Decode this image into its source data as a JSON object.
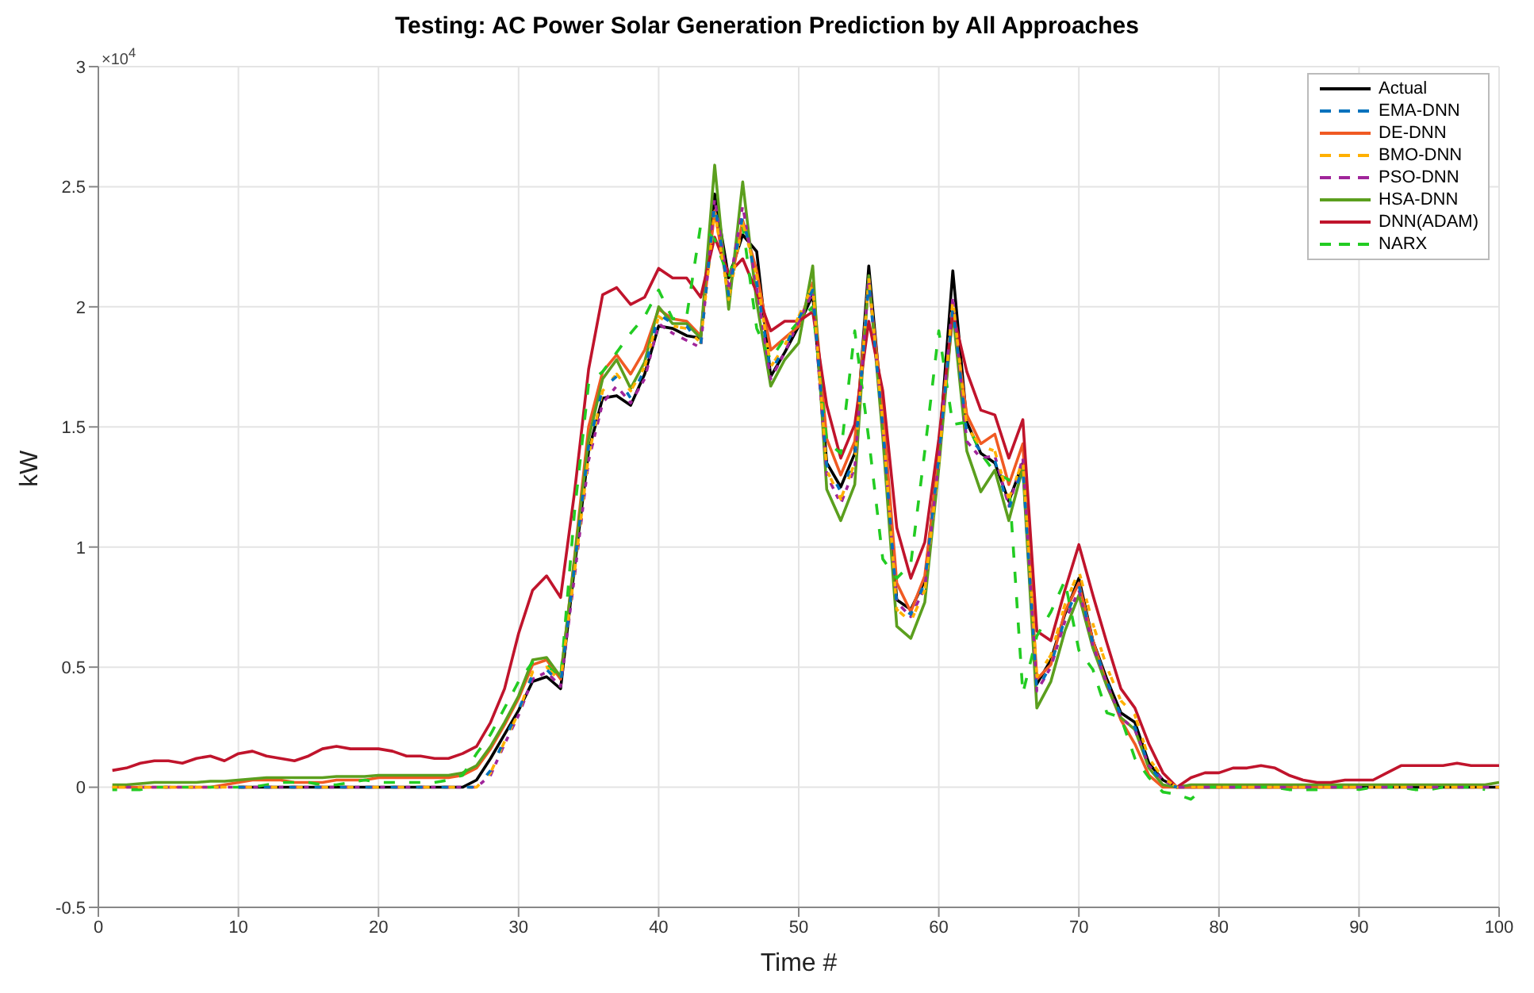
{
  "chart_data": {
    "type": "line",
    "title": "Testing: AC Power Solar Generation Prediction by All Approaches",
    "xlabel": "Time #",
    "ylabel": "kW",
    "annotations": [
      "×10$^{4}$"
    ],
    "x": [
      1,
      2,
      3,
      4,
      5,
      6,
      7,
      8,
      9,
      10,
      11,
      12,
      13,
      14,
      15,
      16,
      17,
      18,
      19,
      20,
      21,
      22,
      23,
      24,
      25,
      26,
      27,
      28,
      29,
      30,
      31,
      32,
      33,
      34,
      35,
      36,
      37,
      38,
      39,
      40,
      41,
      42,
      43,
      44,
      45,
      46,
      47,
      48,
      49,
      50,
      51,
      52,
      53,
      54,
      55,
      56,
      57,
      58,
      59,
      60,
      61,
      62,
      63,
      64,
      65,
      66,
      67,
      68,
      69,
      70,
      71,
      72,
      73,
      74,
      75,
      76,
      77,
      78,
      79,
      80,
      81,
      82,
      83,
      84,
      85,
      86,
      87,
      88,
      89,
      90,
      91,
      92,
      93,
      94,
      95,
      96,
      97,
      98,
      99,
      100
    ],
    "xlim": [
      0,
      100
    ],
    "xticks": [
      0,
      10,
      20,
      30,
      40,
      50,
      60,
      70,
      80,
      90,
      100
    ],
    "ylim": [
      -0.5,
      3
    ],
    "yticks": [
      -0.5,
      0,
      0.5,
      1,
      1.5,
      2,
      2.5,
      3
    ],
    "grid": true,
    "legend": "top right",
    "marker": "none",
    "series": [
      {
        "name": "Actual",
        "color": "#000000",
        "line_style": "solid",
        "values": [
          null,
          null,
          null,
          null,
          null,
          null,
          null,
          null,
          null,
          0,
          0,
          0,
          0,
          0,
          0,
          0,
          0,
          0,
          0,
          0,
          0,
          0,
          0,
          0,
          0,
          0,
          0.03,
          0.12,
          0.22,
          0.32,
          0.44,
          0.46,
          0.41,
          0.92,
          1.4,
          1.62,
          1.63,
          1.59,
          1.72,
          1.92,
          1.91,
          1.88,
          1.87,
          2.47,
          2.12,
          2.3,
          2.23,
          1.71,
          1.81,
          1.92,
          2.05,
          1.35,
          1.25,
          1.39,
          2.17,
          1.54,
          0.78,
          0.74,
          0.86,
          1.39,
          2.15,
          1.52,
          1.39,
          1.35,
          1.19,
          1.35,
          0.43,
          0.53,
          0.72,
          0.87,
          0.61,
          0.45,
          0.31,
          0.27,
          0.1,
          0.03,
          0,
          0,
          0,
          0,
          0,
          0,
          0,
          0,
          0,
          0,
          0,
          0,
          0,
          0,
          0,
          0,
          0,
          0,
          0,
          0,
          0,
          0,
          0,
          0
        ]
      },
      {
        "name": "EMA-DNN",
        "color": "#0072bd",
        "line_style": "dashed",
        "values": [
          null,
          null,
          null,
          null,
          null,
          null,
          null,
          null,
          null,
          0,
          0,
          0,
          0,
          0,
          0,
          0,
          0,
          0,
          0,
          0,
          0,
          0,
          0,
          0,
          0,
          0,
          0,
          0.07,
          0.2,
          0.32,
          0.47,
          0.49,
          0.43,
          0.92,
          1.42,
          1.66,
          1.71,
          1.62,
          1.74,
          1.97,
          1.93,
          1.92,
          1.84,
          2.43,
          2.05,
          2.38,
          2.1,
          1.73,
          1.83,
          1.95,
          2.07,
          1.34,
          1.23,
          1.37,
          2.1,
          1.5,
          0.76,
          0.72,
          0.85,
          1.37,
          2,
          1.47,
          1.4,
          1.36,
          1.16,
          1.33,
          0.4,
          0.51,
          0.7,
          0.84,
          0.6,
          0.44,
          0.3,
          0.25,
          0.09,
          0.02,
          0,
          null,
          null,
          null,
          null,
          null,
          null,
          null,
          null,
          null,
          null,
          null,
          null,
          null,
          null,
          null,
          null,
          null,
          null,
          null,
          null,
          null,
          null,
          null
        ]
      },
      {
        "name": "DE-DNN",
        "color": "#f05a23",
        "line_style": "solid",
        "values": [
          0,
          0,
          0,
          0,
          0,
          0,
          0,
          0,
          0.01,
          0.02,
          0.03,
          0.03,
          0.03,
          0.02,
          0.02,
          0.02,
          0.03,
          0.03,
          0.03,
          0.04,
          0.04,
          0.04,
          0.04,
          0.04,
          0.04,
          0.05,
          0.08,
          0.16,
          0.26,
          0.37,
          0.51,
          0.53,
          0.45,
          0.96,
          1.5,
          1.73,
          1.8,
          1.72,
          1.82,
          1.99,
          1.95,
          1.94,
          1.88,
          2.4,
          2.05,
          2.36,
          2.15,
          1.82,
          1.87,
          1.92,
          2.1,
          1.45,
          1.3,
          1.44,
          2.1,
          1.58,
          0.85,
          0.73,
          0.88,
          1.38,
          1.97,
          1.55,
          1.43,
          1.47,
          1.26,
          1.43,
          0.45,
          0.51,
          0.73,
          0.85,
          0.61,
          0.43,
          0.28,
          0.18,
          0.05,
          0,
          0,
          0,
          0,
          0,
          0,
          0,
          0,
          0,
          0,
          0,
          0,
          0,
          0,
          0,
          null,
          null,
          null,
          null,
          null,
          null,
          null,
          null,
          null,
          null
        ]
      },
      {
        "name": "BMO-DNN",
        "color": "#ffb000",
        "line_style": "dashed",
        "values": [
          0,
          0,
          0,
          0,
          0,
          0,
          0,
          0,
          0,
          0,
          0,
          0,
          0,
          0,
          0,
          0,
          0,
          0,
          0,
          0,
          0,
          0,
          0,
          0,
          0,
          0,
          0,
          0.06,
          0.19,
          0.31,
          0.48,
          0.5,
          0.44,
          0.9,
          1.38,
          1.65,
          1.72,
          1.65,
          1.75,
          1.96,
          1.92,
          1.91,
          1.85,
          2.4,
          2.03,
          2.35,
          2.13,
          1.75,
          1.84,
          1.96,
          2.09,
          1.32,
          1.2,
          1.35,
          2.12,
          1.52,
          0.74,
          0.69,
          0.82,
          1.35,
          2.03,
          1.5,
          1.42,
          1.4,
          1.2,
          1.36,
          0.46,
          0.55,
          0.76,
          0.9,
          0.68,
          0.5,
          0.36,
          0.3,
          0.12,
          0.04,
          0,
          0,
          0,
          0,
          0,
          0,
          0,
          0,
          0,
          0,
          0,
          0,
          0,
          0,
          0,
          0,
          0,
          0,
          0,
          0,
          0,
          0,
          0,
          0
        ]
      },
      {
        "name": "PSO-DNN",
        "color": "#a0259a",
        "line_style": "dashed",
        "values": [
          null,
          0,
          0,
          0,
          0,
          0,
          0,
          0,
          0,
          0,
          0,
          0,
          0,
          0,
          0,
          0,
          0,
          0,
          0,
          0,
          0,
          0,
          0,
          0,
          0,
          0,
          0,
          0.05,
          0.18,
          0.3,
          0.45,
          0.48,
          0.42,
          0.88,
          1.36,
          1.6,
          1.67,
          1.6,
          1.7,
          1.93,
          1.89,
          1.86,
          1.83,
          2.45,
          2.07,
          2.42,
          2.08,
          1.7,
          1.81,
          1.94,
          2.06,
          1.3,
          1.18,
          1.33,
          2.12,
          1.5,
          0.77,
          0.71,
          0.83,
          1.36,
          2.04,
          1.44,
          1.37,
          1.38,
          1.17,
          1.37,
          0.4,
          0.5,
          0.69,
          0.82,
          0.59,
          0.43,
          0.29,
          0.24,
          0.09,
          0.03,
          0,
          0,
          0,
          0,
          0,
          0,
          0,
          0,
          0,
          0,
          0,
          0,
          0,
          0,
          0,
          0,
          0,
          0,
          0,
          0,
          0,
          0,
          0,
          0
        ]
      },
      {
        "name": "HSA-DNN",
        "color": "#5b9f1e",
        "line_style": "solid",
        "values": [
          0.01,
          0.01,
          0.015,
          0.02,
          0.02,
          0.02,
          0.02,
          0.025,
          0.025,
          0.03,
          0.035,
          0.04,
          0.04,
          0.04,
          0.04,
          0.04,
          0.045,
          0.045,
          0.045,
          0.05,
          0.05,
          0.05,
          0.05,
          0.05,
          0.05,
          0.06,
          0.09,
          0.17,
          0.27,
          0.38,
          0.53,
          0.54,
          0.46,
          0.95,
          1.45,
          1.7,
          1.78,
          1.66,
          1.77,
          2,
          1.93,
          1.93,
          1.87,
          2.59,
          1.99,
          2.52,
          2.02,
          1.67,
          1.78,
          1.85,
          2.17,
          1.24,
          1.11,
          1.26,
          2.13,
          1.46,
          0.67,
          0.62,
          0.77,
          1.33,
          1.98,
          1.4,
          1.23,
          1.32,
          1.11,
          1.33,
          0.33,
          0.44,
          0.65,
          0.8,
          0.58,
          0.42,
          0.29,
          0.24,
          0.08,
          0.01,
          0,
          0.01,
          0.01,
          0.01,
          0.01,
          0.01,
          0.01,
          0.01,
          0.01,
          0.01,
          0.01,
          0.01,
          0.01,
          0.01,
          0.01,
          0.01,
          0.01,
          0.01,
          0.01,
          0.01,
          0.01,
          0.01,
          0.01,
          0.02
        ]
      },
      {
        "name": "DNN(ADAM)",
        "color": "#c0142c",
        "line_style": "solid",
        "values": [
          0.07,
          0.08,
          0.1,
          0.11,
          0.11,
          0.1,
          0.12,
          0.13,
          0.11,
          0.14,
          0.15,
          0.13,
          0.12,
          0.11,
          0.13,
          0.16,
          0.17,
          0.16,
          0.16,
          0.16,
          0.15,
          0.13,
          0.13,
          0.12,
          0.12,
          0.14,
          0.17,
          0.27,
          0.41,
          0.64,
          0.82,
          0.88,
          0.79,
          1.23,
          1.74,
          2.05,
          2.08,
          2.01,
          2.04,
          2.16,
          2.12,
          2.12,
          2.04,
          2.29,
          2.14,
          2.2,
          2.06,
          1.9,
          1.94,
          1.94,
          1.98,
          1.59,
          1.37,
          1.51,
          1.94,
          1.65,
          1.08,
          0.87,
          1.02,
          1.45,
          1.98,
          1.73,
          1.57,
          1.55,
          1.37,
          1.53,
          0.65,
          0.61,
          0.82,
          1.01,
          0.8,
          0.6,
          0.41,
          0.33,
          0.18,
          0.06,
          0,
          0.04,
          0.06,
          0.06,
          0.08,
          0.08,
          0.09,
          0.08,
          0.05,
          0.03,
          0.02,
          0.02,
          0.03,
          0.03,
          0.03,
          0.06,
          0.09,
          0.09,
          0.09,
          0.09,
          0.1,
          0.09,
          0.09,
          0.09
        ]
      },
      {
        "name": "NARX",
        "color": "#22cc22",
        "line_style": "dashed",
        "values": [
          -0.01,
          -0.01,
          -0.01,
          0,
          0,
          0,
          0,
          0,
          0,
          0,
          0,
          0.01,
          0.02,
          0.02,
          0.02,
          0.01,
          0.01,
          0.02,
          0.03,
          0.02,
          0.02,
          0.02,
          0.02,
          0.02,
          0.03,
          0.05,
          0.14,
          0.22,
          0.33,
          0.44,
          0.52,
          0.51,
          0.45,
          1.15,
          1.68,
          1.73,
          1.81,
          1.89,
          1.96,
          2.07,
          1.95,
          1.96,
          2.34,
          2.28,
          2.12,
          2.34,
          1.91,
          1.78,
          1.87,
          1.94,
          2,
          1.44,
          1.39,
          1.9,
          1.45,
          0.95,
          0.87,
          0.93,
          1.4,
          1.9,
          1.51,
          1.52,
          1.39,
          1.31,
          1.28,
          0.39,
          0.63,
          0.73,
          0.86,
          0.57,
          0.49,
          0.31,
          0.29,
          0.12,
          0.04,
          -0.02,
          -0.03,
          -0.05,
          0,
          0,
          0,
          0,
          0,
          0,
          -0.01,
          -0.01,
          -0.01,
          0,
          0,
          -0.01,
          0,
          0,
          0,
          -0.01,
          -0.01,
          0,
          0,
          0,
          -0.01,
          null
        ]
      }
    ]
  }
}
